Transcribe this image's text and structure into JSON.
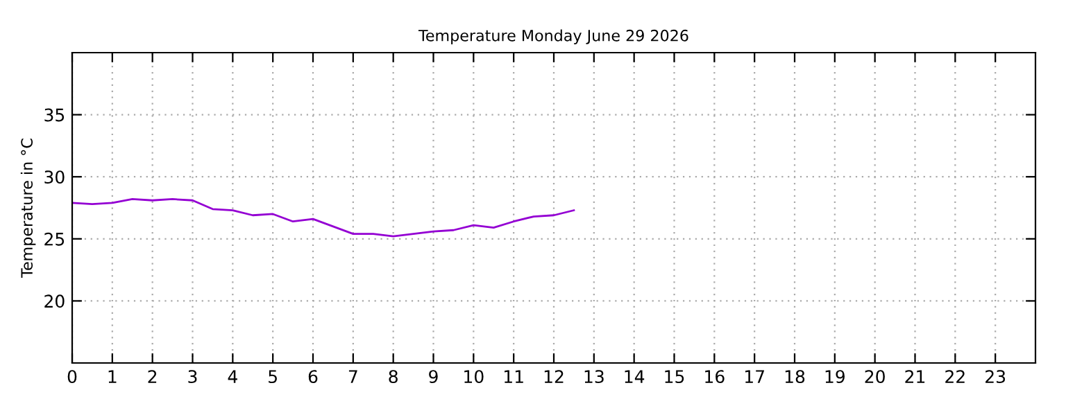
{
  "chart_data": {
    "type": "line",
    "title": "Temperature Monday June 29 2026",
    "ylabel": "Temperature in °C",
    "x": [
      0,
      0.5,
      1,
      1.5,
      2,
      2.5,
      3,
      3.5,
      4,
      4.5,
      5,
      5.5,
      6,
      6.5,
      7,
      7.5,
      8,
      8.5,
      9,
      9.5,
      10,
      10.5,
      11,
      11.5,
      12,
      12.5
    ],
    "series": [
      {
        "color": "#9400d3",
        "values": [
          27.9,
          27.8,
          27.9,
          28.2,
          28.1,
          28.2,
          28.1,
          27.4,
          27.3,
          26.9,
          27.0,
          26.4,
          26.6,
          26.0,
          25.4,
          25.4,
          25.2,
          25.4,
          25.6,
          25.7,
          26.1,
          25.9,
          26.4,
          26.8,
          26.9,
          27.3
        ]
      }
    ],
    "xlim": [
      0,
      24
    ],
    "xticks": [
      0,
      1,
      2,
      3,
      4,
      5,
      6,
      7,
      8,
      9,
      10,
      11,
      12,
      13,
      14,
      15,
      16,
      17,
      18,
      19,
      20,
      21,
      22,
      23
    ],
    "ylim": [
      15,
      40
    ],
    "yticks": [
      20,
      25,
      30,
      35
    ],
    "grid": true,
    "line_style": "solid",
    "marker": "none"
  }
}
